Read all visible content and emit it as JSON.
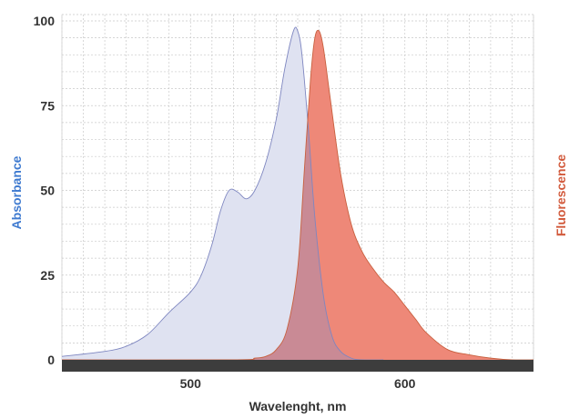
{
  "chart_data": {
    "type": "area",
    "title": "",
    "xlabel": "Wavelenght, nm",
    "ylabel_left": "Absorbance",
    "ylabel_right": "Fluorescence",
    "xlim": [
      440,
      660
    ],
    "ylim": [
      0,
      100
    ],
    "x_ticks": [
      500,
      600
    ],
    "y_ticks": [
      0,
      25,
      50,
      75,
      100
    ],
    "grid": true,
    "colors": {
      "absorbance_fill": "#dfe2f1",
      "absorbance_line": "#7e86c0",
      "fluorescence_fill": "#ee8878",
      "fluorescence_line": "#c8603f",
      "overlap_fill": "#c98a95",
      "axis_band": "#3d3d3d",
      "absorbance_label": "#3e7ad0",
      "fluorescence_label": "#d25a3c"
    },
    "series": [
      {
        "name": "Absorbance",
        "x": [
          440,
          460,
          470,
          480,
          490,
          500,
          505,
          510,
          514,
          518,
          522,
          526,
          530,
          535,
          540,
          544,
          548,
          550,
          552,
          555,
          558,
          562,
          566,
          570,
          575,
          580,
          590
        ],
        "values": [
          1,
          2.5,
          4,
          7.5,
          14,
          20,
          25,
          34,
          44,
          50,
          49.5,
          47.5,
          50,
          58,
          71,
          86,
          97,
          97,
          90,
          68,
          42,
          19,
          7,
          2.5,
          0.5,
          0,
          0
        ]
      },
      {
        "name": "Fluorescence",
        "x": [
          440,
          520,
          530,
          535,
          540,
          545,
          550,
          553,
          556,
          558,
          560,
          562,
          565,
          570,
          575,
          580,
          585,
          590,
          595,
          600,
          605,
          610,
          620,
          630,
          640,
          650,
          660
        ],
        "values": [
          0,
          0,
          0.5,
          1,
          3,
          9,
          27,
          55,
          83,
          95,
          97,
          92,
          78,
          55,
          40,
          32,
          27,
          23,
          20,
          16,
          12,
          8,
          3,
          1.5,
          0.5,
          0,
          0
        ]
      }
    ]
  }
}
